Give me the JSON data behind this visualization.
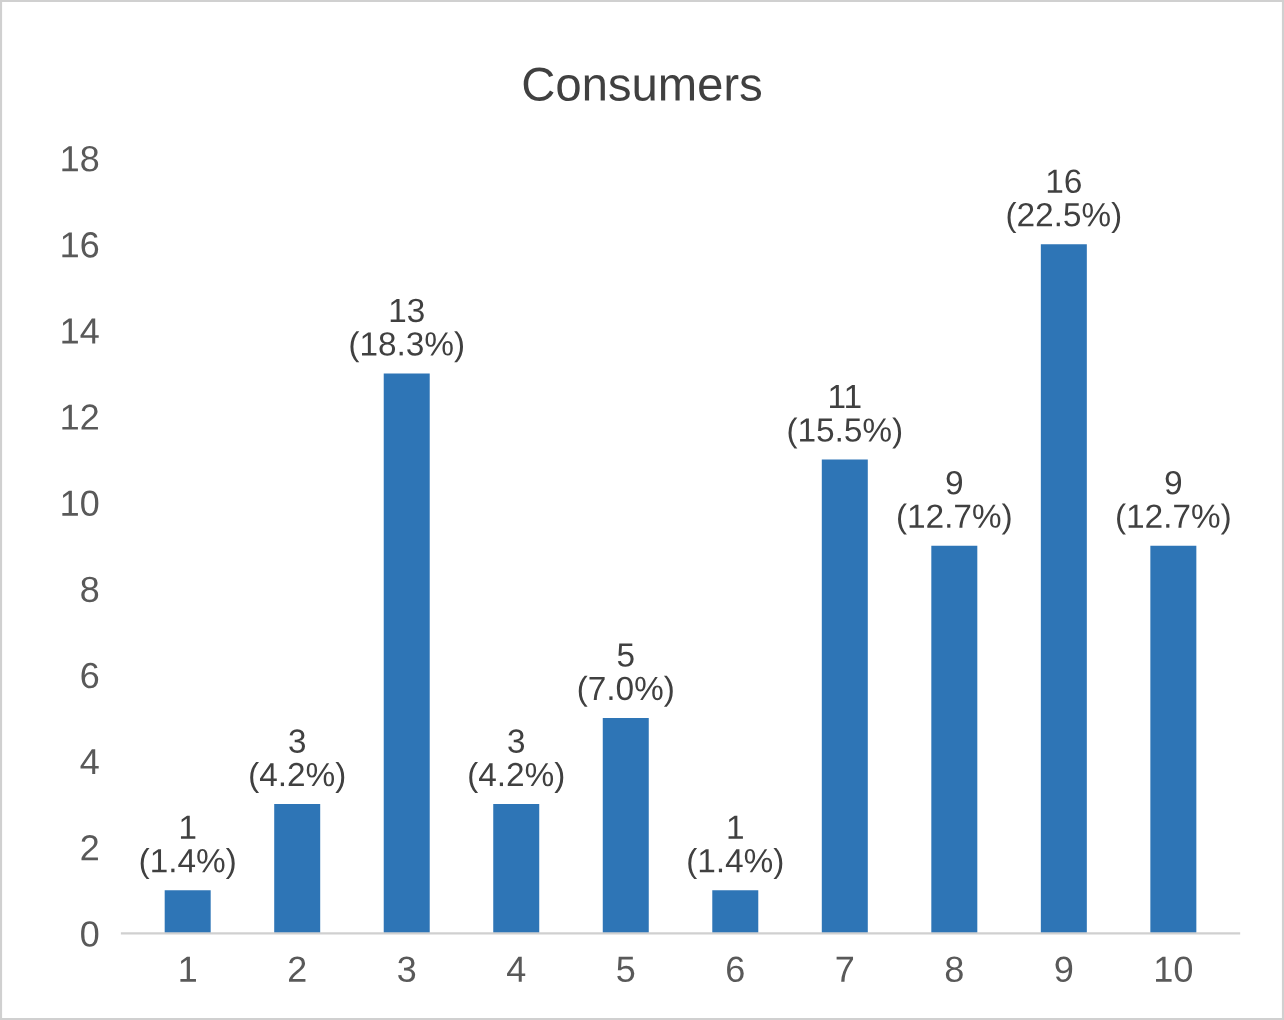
{
  "chart_data": {
    "type": "bar",
    "title": "Consumers",
    "categories": [
      "1",
      "2",
      "3",
      "4",
      "5",
      "6",
      "7",
      "8",
      "9",
      "10"
    ],
    "values": [
      1,
      3,
      13,
      3,
      5,
      1,
      11,
      9,
      16,
      9
    ],
    "value_labels": [
      "1\n(1.4%)",
      "3\n(4.2%)",
      "13\n(18.3%)",
      "3\n(4.2%)",
      "5\n(7.0%)",
      "1\n(1.4%)",
      "11\n(15.5%)",
      "9\n(12.7%)",
      "16\n(22.5%)",
      "9\n(12.7%)"
    ],
    "color": "#2e75b6",
    "ylim": [
      0,
      18
    ],
    "yticks": [
      0,
      2,
      4,
      6,
      8,
      10,
      12,
      14,
      16,
      18
    ],
    "grid": false
  }
}
